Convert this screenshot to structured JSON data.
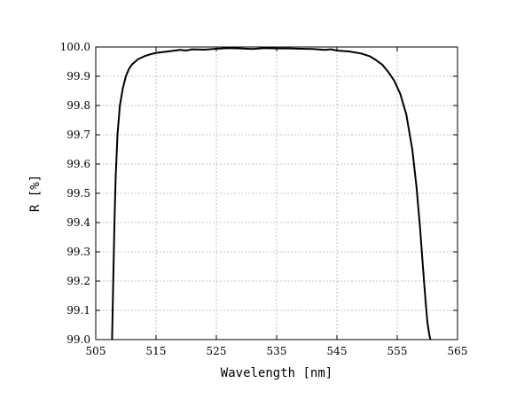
{
  "chart_data": {
    "type": "line",
    "title": "",
    "xlabel": "Wavelength [nm]",
    "ylabel": "R [%]",
    "xlim": [
      505,
      565
    ],
    "ylim": [
      99.0,
      100.0
    ],
    "xticks": [
      505,
      515,
      525,
      535,
      545,
      555,
      565
    ],
    "yticks": [
      99.0,
      99.1,
      99.2,
      99.3,
      99.4,
      99.5,
      99.6,
      99.7,
      99.8,
      99.9,
      100.0
    ],
    "xtick_labels": [
      "505",
      "515",
      "525",
      "535",
      "545",
      "555",
      "565"
    ],
    "ytick_labels": [
      "99.0",
      "99.1",
      "99.2",
      "99.3",
      "99.4",
      "99.5",
      "99.6",
      "99.7",
      "99.8",
      "99.9",
      "100.0"
    ],
    "grid": true,
    "series": [
      {
        "color": "#000000",
        "x": [
          507.7,
          507.9,
          508.1,
          508.3,
          508.6,
          509.0,
          509.5,
          510.0,
          510.5,
          511.0,
          512.0,
          513.0,
          514.0,
          515.0,
          517.0,
          519.0,
          520.0,
          521.0,
          523.0,
          525.0,
          527.0,
          529.0,
          531.0,
          533.0,
          535.0,
          537.0,
          539.0,
          541.0,
          543.0,
          544.0,
          545.0,
          547.0,
          549.0,
          550.5,
          551.5,
          552.5,
          553.5,
          554.5,
          555.5,
          556.5,
          557.5,
          558.2,
          558.8,
          559.3,
          559.7,
          560.0,
          560.3,
          560.5
        ],
        "y": [
          99.0,
          99.2,
          99.4,
          99.55,
          99.7,
          99.8,
          99.86,
          99.9,
          99.925,
          99.94,
          99.958,
          99.968,
          99.975,
          99.98,
          99.985,
          99.99,
          99.988,
          99.992,
          99.991,
          99.994,
          99.996,
          99.995,
          99.993,
          99.996,
          99.995,
          99.995,
          99.994,
          99.993,
          99.99,
          99.992,
          99.988,
          99.985,
          99.978,
          99.968,
          99.955,
          99.94,
          99.915,
          99.885,
          99.84,
          99.77,
          99.65,
          99.52,
          99.38,
          99.24,
          99.13,
          99.06,
          99.02,
          99.0
        ]
      }
    ]
  }
}
